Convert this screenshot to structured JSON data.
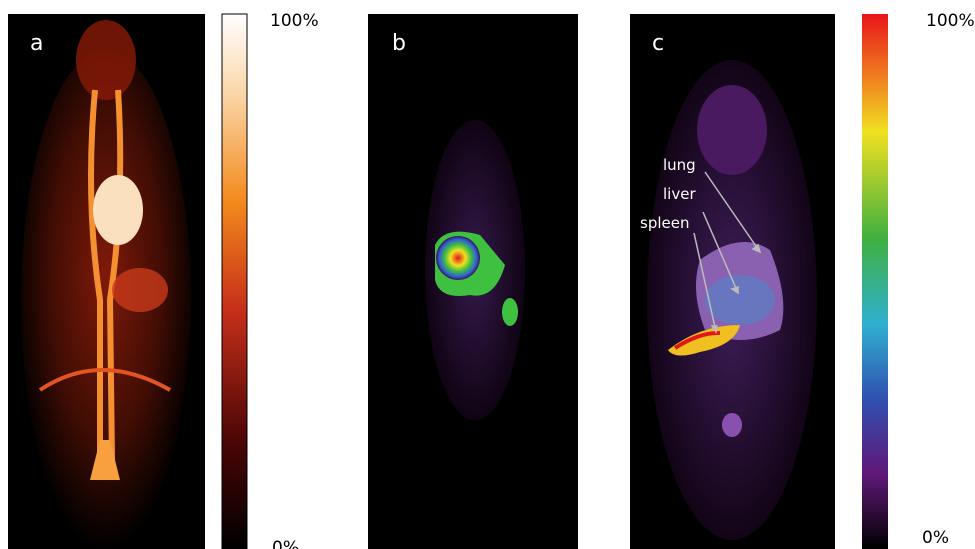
{
  "panels": [
    {
      "label": "a"
    },
    {
      "label": "b"
    },
    {
      "label": "c",
      "annotations": [
        "lung",
        "liver",
        "spleen"
      ]
    }
  ],
  "colorbars": [
    {
      "max_label": "100%",
      "min_label": "0%"
    },
    {
      "max_label": "100%",
      "min_label": "0%"
    }
  ]
}
